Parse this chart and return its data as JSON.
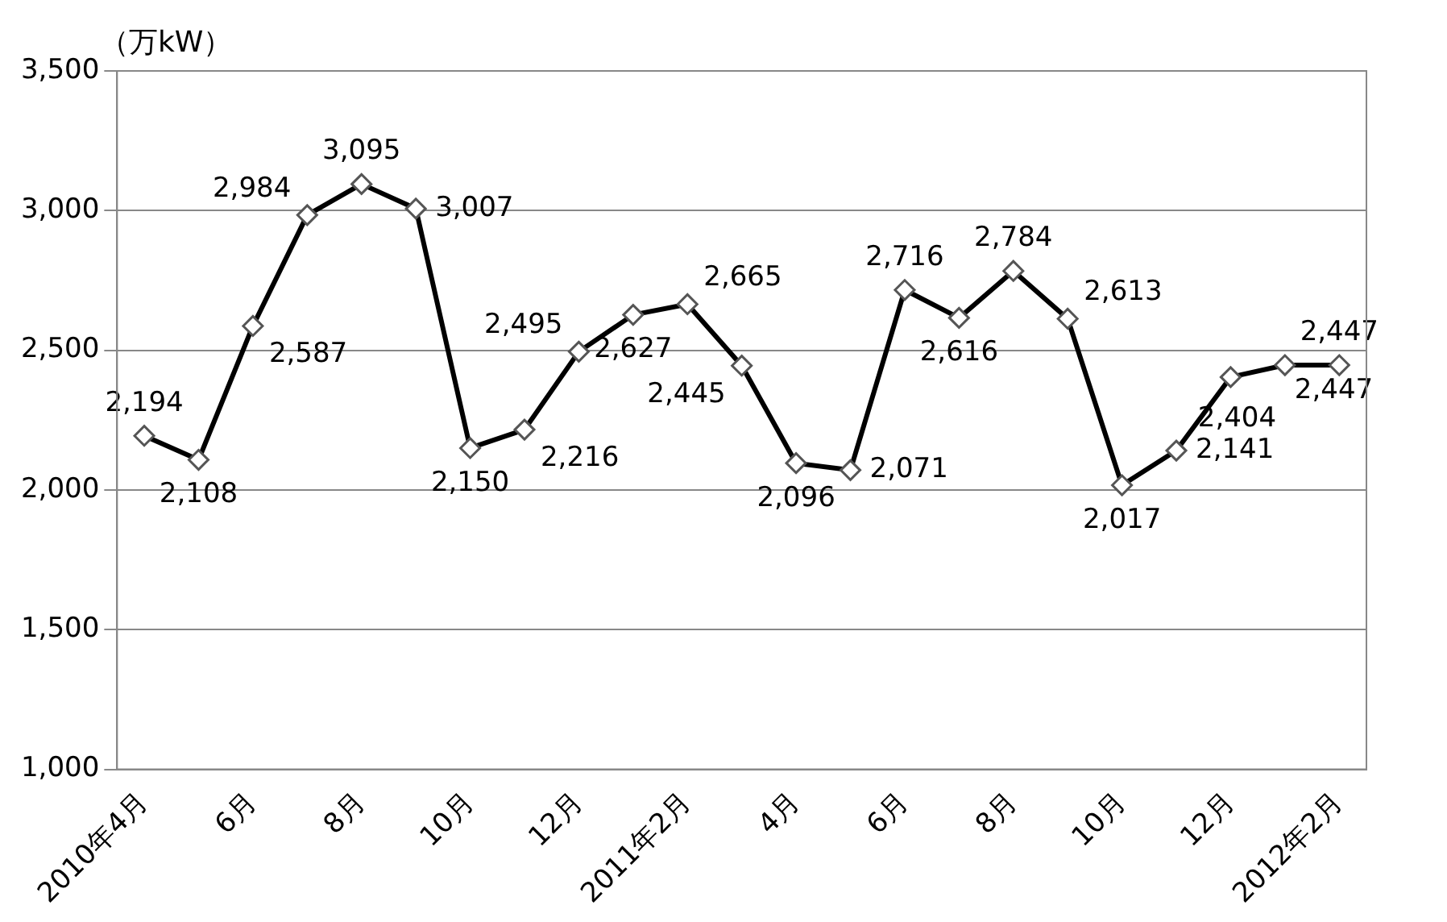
{
  "chart_data": {
    "type": "line",
    "ylabel": "（万kW）",
    "categories": [
      "2010年4月",
      null,
      "6月",
      null,
      "8月",
      null,
      "10月",
      null,
      "12月",
      null,
      "2011年2月",
      null,
      "4月",
      null,
      "6月",
      null,
      "8月",
      null,
      "10月",
      null,
      "12月",
      null,
      "2012年2月"
    ],
    "values": [
      2194,
      2108,
      2587,
      2984,
      3095,
      3007,
      2150,
      2216,
      2495,
      2627,
      2665,
      2445,
      2096,
      2071,
      2716,
      2616,
      2784,
      2613,
      2017,
      2141,
      2404,
      2447,
      2447
    ],
    "value_labels": [
      "2,194",
      "2,108",
      "2,587",
      "2,984",
      "3,095",
      "3,007",
      "2,150",
      "2,216",
      "2,495",
      "2,627",
      "2,665",
      "2,445",
      "2,096",
      "2,071",
      "2,716",
      "2,616",
      "2,784",
      "2,613",
      "2,017",
      "2,141",
      "2,404",
      "2,447",
      "2,447"
    ],
    "color": "#000000",
    "marker": "diamond",
    "line_style": "solid",
    "grid": "y",
    "ylim": [
      1000,
      3500
    ],
    "yticks": [
      {
        "value": 1000,
        "label": "1,000"
      },
      {
        "value": 1500,
        "label": "1,500"
      },
      {
        "value": 2000,
        "label": "2,000"
      },
      {
        "value": 2500,
        "label": "2,500"
      },
      {
        "value": 3000,
        "label": "3,000"
      },
      {
        "value": 3500,
        "label": "3,500"
      }
    ]
  }
}
